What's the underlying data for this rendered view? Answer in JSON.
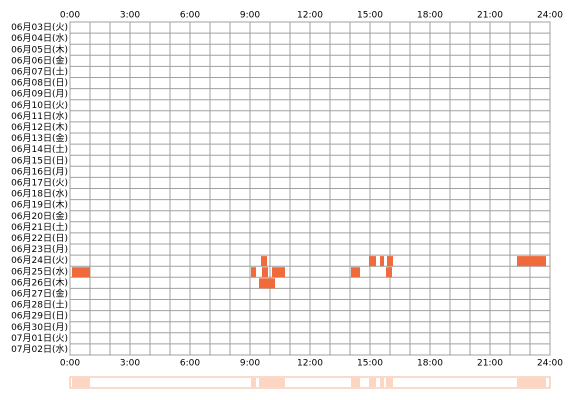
{
  "chart_data": {
    "type": "timeline",
    "categories": [
      "06月03日(火)",
      "06月04日(水)",
      "06月05日(木)",
      "06月06日(金)",
      "06月07日(土)",
      "06月08日(日)",
      "06月09日(月)",
      "06月10日(火)",
      "06月11日(水)",
      "06月12日(木)",
      "06月13日(金)",
      "06月14日(土)",
      "06月15日(日)",
      "06月16日(月)",
      "06月17日(火)",
      "06月18日(水)",
      "06月19日(木)",
      "06月20日(金)",
      "06月21日(土)",
      "06月22日(日)",
      "06月23日(月)",
      "06月24日(火)",
      "06月25日(水)",
      "06月26日(木)",
      "06月27日(金)",
      "06月28日(土)",
      "06月29日(日)",
      "06月30日(月)",
      "07月01日(火)",
      "07月02日(水)"
    ],
    "xlim": [
      0,
      24
    ],
    "xticks": [
      {
        "value": 0,
        "label": "0:00"
      },
      {
        "value": 3,
        "label": "3:00"
      },
      {
        "value": 6,
        "label": "6:00"
      },
      {
        "value": 9,
        "label": "9:00"
      },
      {
        "value": 12,
        "label": "12:00"
      },
      {
        "value": 15,
        "label": "15:00"
      },
      {
        "value": 18,
        "label": "18:00"
      },
      {
        "value": 21,
        "label": "21:00"
      },
      {
        "value": 24,
        "label": "24:00"
      }
    ],
    "color": "#f06a3c",
    "summary_color": "#fcd5c3",
    "events": [
      {
        "row": 21,
        "start": 9.55,
        "end": 9.85
      },
      {
        "row": 21,
        "start": 14.95,
        "end": 15.3
      },
      {
        "row": 21,
        "start": 15.5,
        "end": 15.7
      },
      {
        "row": 21,
        "start": 15.85,
        "end": 16.15
      },
      {
        "row": 21,
        "start": 22.35,
        "end": 23.8
      },
      {
        "row": 22,
        "start": 0.1,
        "end": 1.0
      },
      {
        "row": 22,
        "start": 9.05,
        "end": 9.3
      },
      {
        "row": 22,
        "start": 9.6,
        "end": 9.9
      },
      {
        "row": 22,
        "start": 10.1,
        "end": 10.75
      },
      {
        "row": 22,
        "start": 14.05,
        "end": 14.5
      },
      {
        "row": 22,
        "start": 15.8,
        "end": 16.1
      },
      {
        "row": 23,
        "start": 9.45,
        "end": 10.25
      }
    ]
  }
}
